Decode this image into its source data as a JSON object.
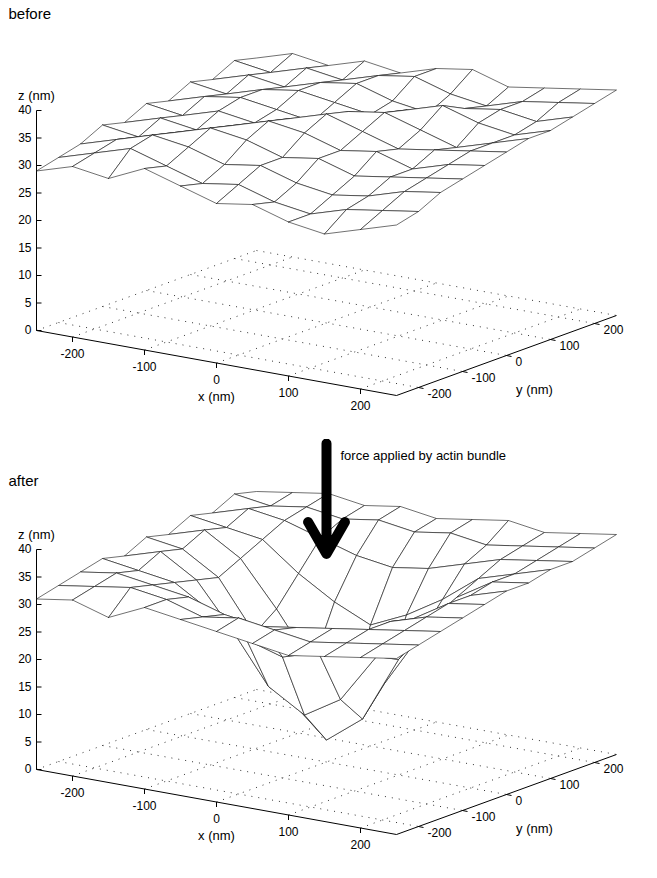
{
  "chart_data": [
    {
      "type": "surface",
      "title": "before",
      "x": [
        -250,
        -200,
        -150,
        -100,
        -50,
        0,
        50,
        100,
        150,
        200,
        250
      ],
      "y": [
        -250,
        -200,
        -150,
        -100,
        -50,
        0,
        50,
        100,
        150,
        200,
        250
      ],
      "z": [
        [
          29,
          31,
          30,
          33,
          31,
          29,
          30,
          28,
          27,
          29,
          31
        ],
        [
          30,
          32,
          34,
          32,
          30,
          31,
          29,
          28,
          30,
          31,
          32
        ],
        [
          31,
          33,
          35,
          34,
          32,
          33,
          31,
          30,
          31,
          33,
          34
        ],
        [
          33,
          32,
          34,
          36,
          35,
          33,
          34,
          32,
          33,
          34,
          35
        ],
        [
          32,
          34,
          33,
          35,
          37,
          36,
          34,
          35,
          33,
          35,
          36
        ],
        [
          34,
          33,
          35,
          34,
          36,
          38,
          36,
          34,
          35,
          36,
          37
        ],
        [
          33,
          35,
          36,
          35,
          34,
          37,
          38,
          36,
          34,
          36,
          38
        ],
        [
          35,
          34,
          36,
          37,
          36,
          35,
          37,
          39,
          37,
          36,
          38
        ],
        [
          34,
          36,
          35,
          37,
          38,
          36,
          35,
          37,
          38,
          37,
          39
        ],
        [
          36,
          35,
          37,
          36,
          38,
          39,
          37,
          36,
          38,
          39,
          40
        ],
        [
          35,
          37,
          36,
          38,
          37,
          39,
          40,
          38,
          39,
          40,
          41
        ]
      ],
      "xlim": [
        -250,
        250
      ],
      "ylim": [
        -250,
        250
      ],
      "zlim": [
        0,
        40
      ],
      "xticks": [
        -200,
        -100,
        0,
        100,
        200
      ],
      "yticks": [
        -200,
        -100,
        0,
        100,
        200
      ],
      "zticks": [
        0,
        5,
        10,
        15,
        20,
        25,
        30,
        35,
        40
      ],
      "xlabel": "x (nm)",
      "ylabel": "y (nm)",
      "zlabel": "z (nm)",
      "grid": true
    },
    {
      "type": "surface",
      "title": "after",
      "annotation": "force applied by actin bundle",
      "x": [
        -250,
        -200,
        -150,
        -100,
        -50,
        0,
        50,
        100,
        150,
        200,
        250
      ],
      "y": [
        -250,
        -200,
        -150,
        -100,
        -50,
        0,
        50,
        100,
        150,
        200,
        250
      ],
      "z": [
        [
          31,
          32,
          30,
          33,
          32,
          31,
          30,
          29,
          30,
          31,
          32
        ],
        [
          32,
          33,
          34,
          33,
          31,
          32,
          31,
          30,
          31,
          32,
          33
        ],
        [
          33,
          34,
          33,
          32,
          30,
          29,
          30,
          31,
          32,
          33,
          34
        ],
        [
          34,
          33,
          32,
          28,
          24,
          22,
          24,
          28,
          32,
          34,
          35
        ],
        [
          33,
          35,
          31,
          23,
          14,
          10,
          14,
          23,
          31,
          35,
          36
        ],
        [
          35,
          34,
          30,
          21,
          10,
          4,
          9,
          21,
          30,
          35,
          37
        ],
        [
          34,
          36,
          32,
          24,
          15,
          10,
          14,
          24,
          32,
          36,
          37
        ],
        [
          36,
          35,
          34,
          29,
          25,
          22,
          25,
          29,
          34,
          36,
          38
        ],
        [
          35,
          37,
          36,
          34,
          32,
          31,
          32,
          34,
          36,
          37,
          38
        ],
        [
          37,
          36,
          37,
          36,
          37,
          36,
          37,
          36,
          37,
          38,
          39
        ],
        [
          36,
          37,
          38,
          37,
          38,
          37,
          38,
          39,
          38,
          39,
          40
        ]
      ],
      "xlim": [
        -250,
        250
      ],
      "ylim": [
        -250,
        250
      ],
      "zlim": [
        0,
        40
      ],
      "xticks": [
        -200,
        -100,
        0,
        100,
        200
      ],
      "yticks": [
        -200,
        -100,
        0,
        100,
        200
      ],
      "zticks": [
        0,
        5,
        10,
        15,
        20,
        25,
        30,
        35,
        40
      ],
      "xlabel": "x (nm)",
      "ylabel": "y (nm)",
      "zlabel": "z (nm)",
      "grid": true
    }
  ]
}
